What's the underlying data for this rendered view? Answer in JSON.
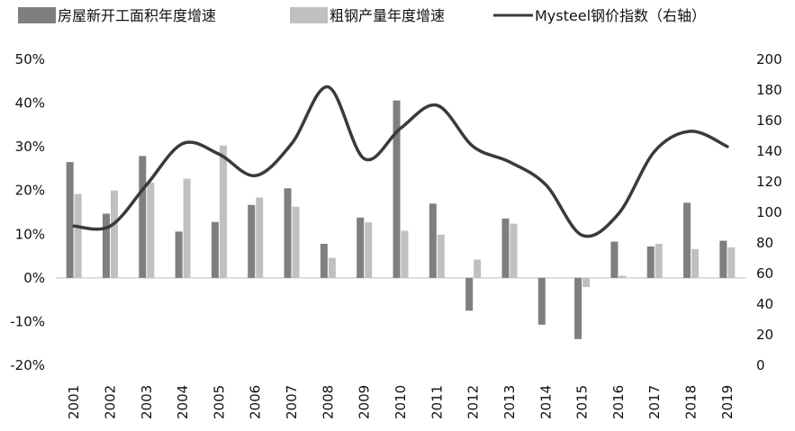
{
  "chart_data": {
    "type": "bar+line",
    "categories": [
      "2001",
      "2002",
      "2003",
      "2004",
      "2005",
      "2006",
      "2007",
      "2008",
      "2009",
      "2010",
      "2011",
      "2012",
      "2013",
      "2014",
      "2015",
      "2016",
      "2017",
      "2018",
      "2019"
    ],
    "series": [
      {
        "name": "房屋新开工面积年度增速",
        "type": "bar",
        "axis": "left",
        "color": "#7f7f7f",
        "values": [
          26.5,
          14.7,
          27.9,
          10.6,
          12.8,
          16.7,
          20.5,
          7.8,
          13.8,
          40.6,
          17.0,
          -7.5,
          13.6,
          -10.7,
          -14.0,
          8.3,
          7.2,
          17.2,
          8.5
        ]
      },
      {
        "name": "粗钢产量年度增速",
        "type": "bar",
        "axis": "left",
        "color": "#c0c0c0",
        "values": [
          19.2,
          20.0,
          21.8,
          22.7,
          30.3,
          18.4,
          16.3,
          4.6,
          12.7,
          10.8,
          9.9,
          4.2,
          12.4,
          0.0,
          -2.1,
          0.5,
          7.8,
          6.6,
          7.0
        ]
      },
      {
        "name": "Mysteel钢价指数（右轴）",
        "type": "line",
        "axis": "right",
        "color": "#3a3a3a",
        "values": [
          91,
          91,
          118,
          145,
          138,
          124,
          145,
          182,
          135,
          155,
          170,
          143,
          133,
          118,
          85,
          99,
          140,
          153,
          143
        ]
      }
    ],
    "y_left": {
      "min": -20,
      "max": 50,
      "ticks": [
        "-20%",
        "-10%",
        "0%",
        "10%",
        "20%",
        "30%",
        "40%",
        "50%"
      ]
    },
    "y_right": {
      "min": 0,
      "max": 200,
      "ticks": [
        "0",
        "20",
        "40",
        "60",
        "80",
        "100",
        "120",
        "140",
        "160",
        "180",
        "200"
      ]
    },
    "legend_position": "top",
    "grid": false
  }
}
